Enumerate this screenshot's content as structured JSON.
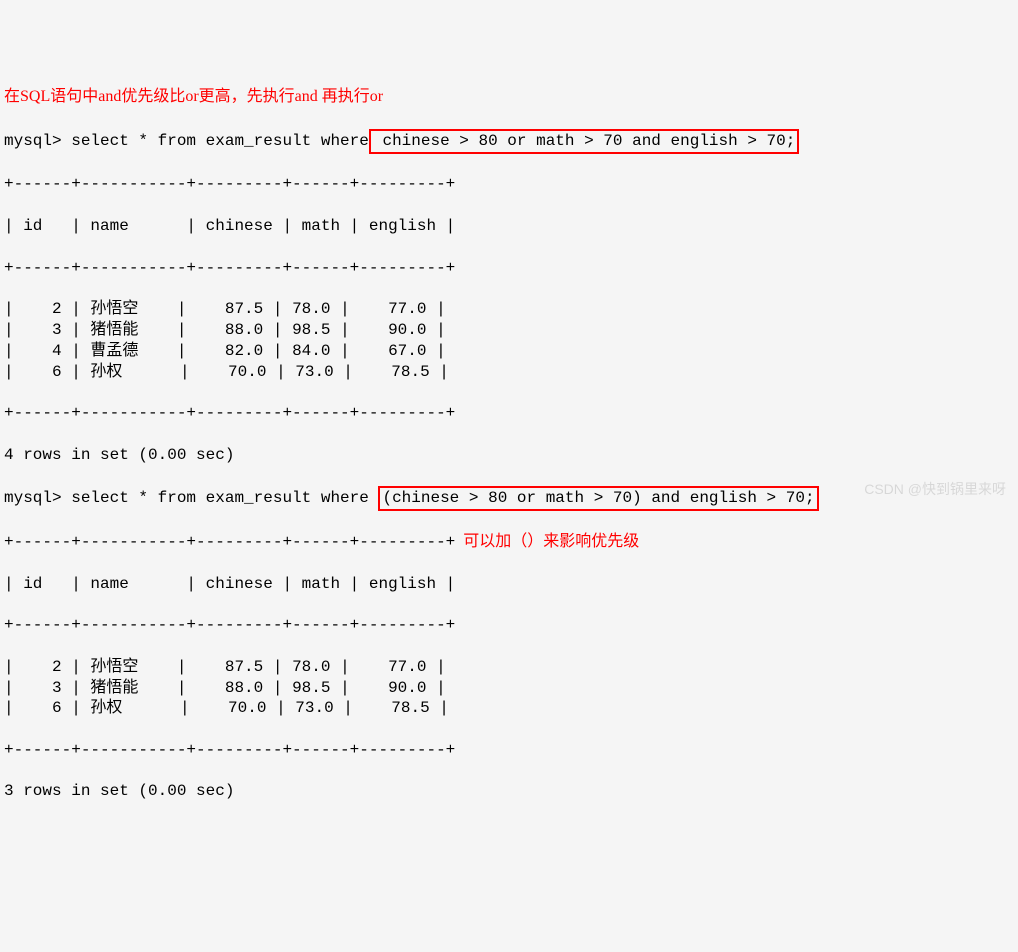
{
  "note_top": "在SQL语句中and优先级比or更高，先执行and 再执行or",
  "note_side": "可以加（）来影响优先级",
  "watermark": "CSDN @快到锅里来呀",
  "prompt": "mysql>",
  "query1_pre": " select * from exam_result where",
  "query1_box": " chinese > 80 or math > 70 and english > 70;",
  "query2_pre": " select * from exam_result where ",
  "query2_box": "(chinese > 80 or math > 70) and english > 70;",
  "border_line": "+------+-----------+---------+------+---------+",
  "header_line": "| id   | name      | chinese | math | english |",
  "rows1": [
    {
      "id": "2",
      "name": "孙悟空",
      "chinese": "87.5",
      "math": "78.0",
      "english": "77.0"
    },
    {
      "id": "3",
      "name": "猪悟能",
      "chinese": "88.0",
      "math": "98.5",
      "english": "90.0"
    },
    {
      "id": "4",
      "name": "曹孟德",
      "chinese": "82.0",
      "math": "84.0",
      "english": "67.0"
    },
    {
      "id": "6",
      "name": "孙权",
      "chinese": "70.0",
      "math": "73.0",
      "english": "78.5"
    }
  ],
  "rows2": [
    {
      "id": "2",
      "name": "孙悟空",
      "chinese": "87.5",
      "math": "78.0",
      "english": "77.0"
    },
    {
      "id": "3",
      "name": "猪悟能",
      "chinese": "88.0",
      "math": "98.5",
      "english": "90.0"
    },
    {
      "id": "6",
      "name": "孙权",
      "chinese": "70.0",
      "math": "73.0",
      "english": "78.5"
    }
  ],
  "footer1": "4 rows in set (0.00 sec)",
  "footer2": "3 rows in set (0.00 sec)"
}
